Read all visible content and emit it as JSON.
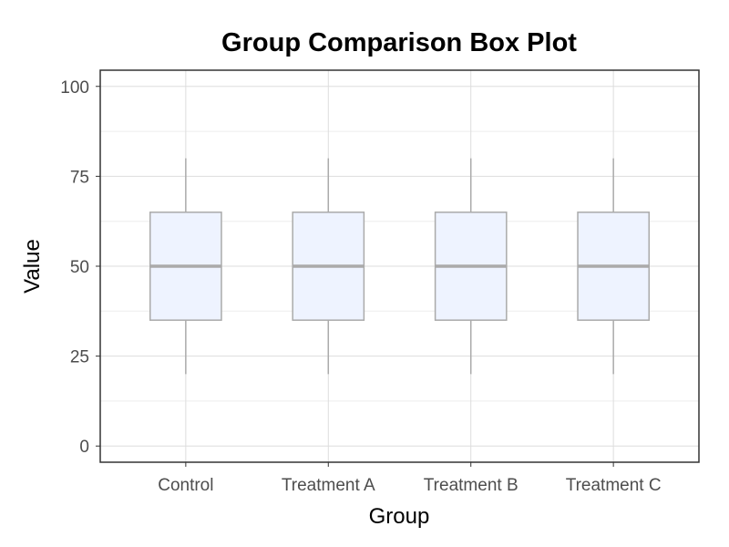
{
  "chart_data": {
    "type": "box",
    "title": "Group Comparison Box Plot",
    "xlabel": "Group",
    "ylabel": "Value",
    "categories": [
      "Control",
      "Treatment A",
      "Treatment B",
      "Treatment C"
    ],
    "boxes": [
      {
        "whisker_low": 20,
        "q1": 35,
        "median": 50,
        "q3": 65,
        "whisker_high": 80
      },
      {
        "whisker_low": 20,
        "q1": 35,
        "median": 50,
        "q3": 65,
        "whisker_high": 80
      },
      {
        "whisker_low": 20,
        "q1": 35,
        "median": 50,
        "q3": 65,
        "whisker_high": 80
      },
      {
        "whisker_low": 20,
        "q1": 35,
        "median": 50,
        "q3": 65,
        "whisker_high": 80
      }
    ],
    "ylim": [
      -4.5,
      104.5
    ],
    "yticks": [
      0,
      25,
      50,
      75,
      100
    ],
    "grid": true,
    "colors": {
      "box_fill": "#eef3ff",
      "box_stroke": "#aaaaaa",
      "median": "#aaaaaa",
      "grid_major": "#dddddd",
      "grid_minor": "#eeeeee",
      "panel_border": "#333333"
    }
  }
}
